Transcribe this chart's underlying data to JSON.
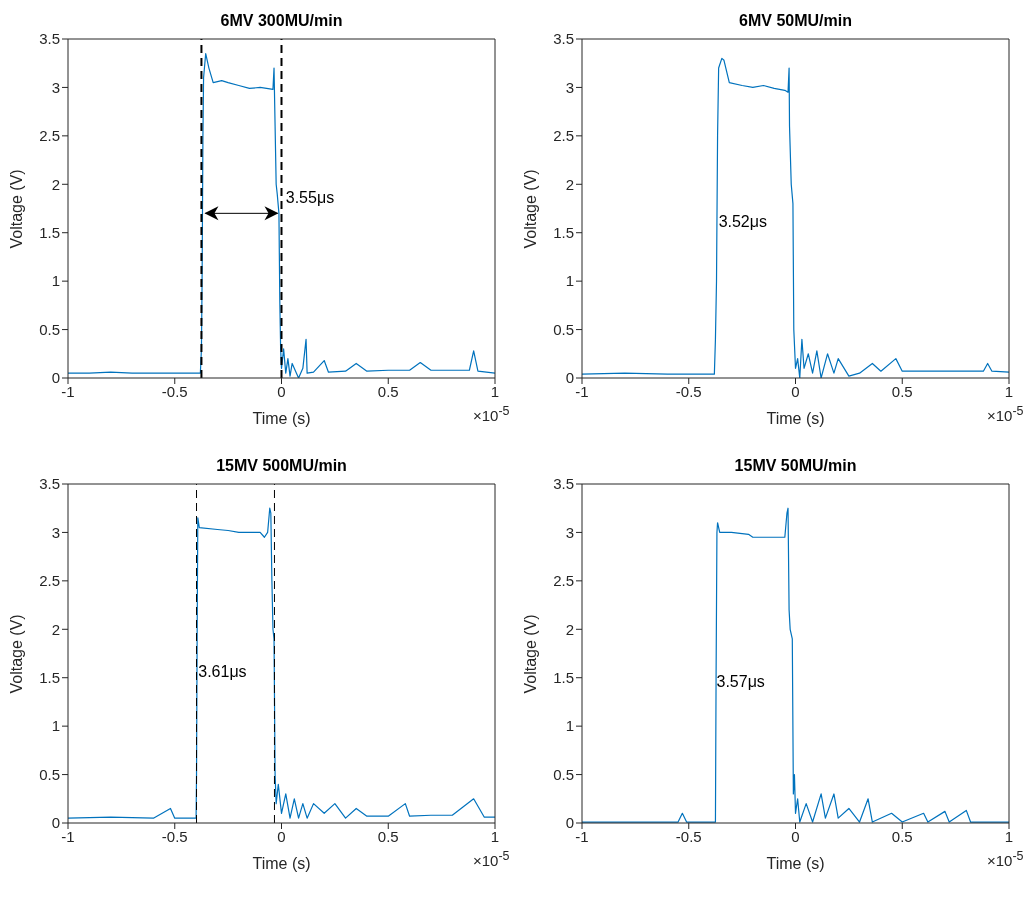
{
  "chart_data": [
    {
      "type": "line",
      "title": "6MV 300MU/min",
      "xlabel": "Time (s)",
      "ylabel": "Voltage (V)",
      "xlim": [
        -1,
        1
      ],
      "xticks": [
        -1,
        -0.5,
        0,
        0.5,
        1
      ],
      "ylim": [
        0,
        3.5
      ],
      "yticks": [
        0,
        0.5,
        1,
        1.5,
        2,
        2.5,
        3,
        3.5
      ],
      "marker": "none",
      "line_style": "solid",
      "series": [
        {
          "color": "#0072bd",
          "x": [
            -1,
            -0.9,
            -0.8,
            -0.7,
            -0.6,
            -0.5,
            -0.38,
            -0.375,
            -0.372,
            -0.368,
            -0.365,
            -0.355,
            -0.34,
            -0.32,
            -0.28,
            -0.25,
            -0.2,
            -0.15,
            -0.1,
            -0.04,
            -0.035,
            -0.03,
            -0.025,
            -0.02,
            -0.012,
            -0.008,
            -0.004,
            0,
            0.01,
            0.02,
            0.03,
            0.04,
            0.05,
            0.07,
            0.08,
            0.1,
            0.115,
            0.12,
            0.15,
            0.2,
            0.22,
            0.3,
            0.35,
            0.4,
            0.5,
            0.6,
            0.65,
            0.7,
            0.8,
            0.88,
            0.9,
            0.92,
            1
          ],
          "values": [
            0.05,
            0.05,
            0.06,
            0.05,
            0.05,
            0.05,
            0.05,
            0.3,
            1,
            2.5,
            3.1,
            3.35,
            3.2,
            3.05,
            3.07,
            3.05,
            3.02,
            2.99,
            3,
            2.98,
            3.2,
            2.6,
            2,
            1.9,
            1.7,
            0.8,
            0.3,
            0.1,
            0.3,
            0.05,
            0.2,
            0.02,
            0.15,
            0.05,
            0,
            0.1,
            0.4,
            0.05,
            0.06,
            0.18,
            0.06,
            0.07,
            0.15,
            0.07,
            0.08,
            0.08,
            0.16,
            0.08,
            0.08,
            0.08,
            0.28,
            0.07,
            0.05
          ]
        }
      ],
      "ref_lines": [
        {
          "axis": "x",
          "value": -0.375,
          "color": "#000000",
          "line_style": "dashed"
        },
        {
          "axis": "x",
          "value": 0,
          "color": "#000000",
          "line_style": "dashed"
        }
      ],
      "annotations": [
        {
          "text": "3.55μs",
          "x": 0.02,
          "y": 1.85
        },
        "×10$^{-5}$"
      ]
    },
    {
      "type": "line",
      "title": "6MV 50MU/min",
      "xlabel": "Time (s)",
      "ylabel": "Voltage (V)",
      "xlim": [
        -1,
        1
      ],
      "xticks": [
        -1,
        -0.5,
        0,
        0.5,
        1
      ],
      "ylim": [
        0,
        3.5
      ],
      "yticks": [
        0,
        0.5,
        1,
        1.5,
        2,
        2.5,
        3,
        3.5
      ],
      "marker": "none",
      "line_style": "solid",
      "series": [
        {
          "color": "#0072bd",
          "x": [
            -1,
            -0.8,
            -0.6,
            -0.38,
            -0.375,
            -0.37,
            -0.365,
            -0.36,
            -0.345,
            -0.335,
            -0.31,
            -0.25,
            -0.2,
            -0.15,
            -0.1,
            -0.05,
            -0.035,
            -0.03,
            -0.028,
            -0.02,
            -0.012,
            -0.008,
            0,
            0.01,
            0.02,
            0.03,
            0.04,
            0.06,
            0.08,
            0.1,
            0.12,
            0.15,
            0.18,
            0.2,
            0.25,
            0.3,
            0.36,
            0.4,
            0.47,
            0.5,
            0.6,
            0.7,
            0.88,
            0.9,
            0.92,
            1
          ],
          "values": [
            0.04,
            0.05,
            0.04,
            0.04,
            0.4,
            1,
            2.5,
            3.2,
            3.3,
            3.28,
            3.05,
            3.02,
            3,
            3.02,
            2.99,
            2.97,
            2.95,
            3.2,
            2.6,
            2,
            1.8,
            0.5,
            0.1,
            0.2,
            0,
            0.4,
            0.1,
            0.25,
            0.05,
            0.28,
            0,
            0.25,
            0.05,
            0.2,
            0.02,
            0.05,
            0.15,
            0.07,
            0.2,
            0.07,
            0.07,
            0.07,
            0.07,
            0.15,
            0.07,
            0.06
          ]
        }
      ],
      "annotations": [
        {
          "text": "3.52μs",
          "x": -0.36,
          "y": 1.6
        },
        "×10$^{-5}$"
      ]
    },
    {
      "type": "line",
      "title": "15MV 500MU/min",
      "xlabel": "Time (s)",
      "ylabel": "Voltage (V)",
      "xlim": [
        -1,
        1
      ],
      "xticks": [
        -1,
        -0.5,
        0,
        0.5,
        1
      ],
      "ylim": [
        0,
        3.5
      ],
      "yticks": [
        0,
        0.5,
        1,
        1.5,
        2,
        2.5,
        3,
        3.5
      ],
      "marker": "none",
      "line_style": "solid",
      "series": [
        {
          "color": "#0072bd",
          "x": [
            -1,
            -0.8,
            -0.6,
            -0.52,
            -0.5,
            -0.4,
            -0.398,
            -0.395,
            -0.392,
            -0.385,
            -0.3,
            -0.25,
            -0.2,
            -0.1,
            -0.08,
            -0.065,
            -0.055,
            -0.05,
            -0.045,
            -0.04,
            -0.035,
            -0.03,
            -0.025,
            -0.015,
            0,
            0.02,
            0.04,
            0.06,
            0.08,
            0.1,
            0.12,
            0.15,
            0.2,
            0.25,
            0.3,
            0.35,
            0.4,
            0.5,
            0.58,
            0.6,
            0.7,
            0.8,
            0.9,
            0.95,
            1
          ],
          "values": [
            0.05,
            0.06,
            0.05,
            0.15,
            0.05,
            0.05,
            0.5,
            2,
            3.15,
            3.05,
            3.03,
            3.02,
            3,
            3,
            2.95,
            3,
            3.25,
            3.2,
            2.5,
            2,
            1.9,
            0.5,
            0.2,
            0.4,
            0.1,
            0.3,
            0.05,
            0.25,
            0.05,
            0.2,
            0.05,
            0.2,
            0.1,
            0.2,
            0.05,
            0.15,
            0.07,
            0.07,
            0.2,
            0.07,
            0.08,
            0.08,
            0.25,
            0.06,
            0.06
          ]
        }
      ],
      "ref_lines": [
        {
          "axis": "x",
          "value": -0.398,
          "color": "#000000",
          "line_style": "dashed"
        },
        {
          "axis": "x",
          "value": -0.033,
          "color": "#000000",
          "line_style": "dashed"
        }
      ],
      "annotations": [
        {
          "text": "3.61μs",
          "x": -0.39,
          "y": 1.55
        },
        "×10$^{-5}$"
      ]
    },
    {
      "type": "line",
      "title": "15MV 50MU/min",
      "xlabel": "Time (s)",
      "ylabel": "Voltage (V)",
      "xlim": [
        -1,
        1
      ],
      "xticks": [
        -1,
        -0.5,
        0,
        0.5,
        1
      ],
      "ylim": [
        0,
        3.5
      ],
      "yticks": [
        0,
        0.5,
        1,
        1.5,
        2,
        2.5,
        3,
        3.5
      ],
      "marker": "none",
      "line_style": "solid",
      "series": [
        {
          "color": "#0072bd",
          "x": [
            -1,
            -0.8,
            -0.55,
            -0.53,
            -0.51,
            -0.375,
            -0.372,
            -0.368,
            -0.365,
            -0.355,
            -0.3,
            -0.22,
            -0.2,
            -0.1,
            -0.05,
            -0.04,
            -0.035,
            -0.03,
            -0.025,
            -0.015,
            -0.01,
            -0.005,
            0,
            0.01,
            0.02,
            0.05,
            0.08,
            0.12,
            0.14,
            0.18,
            0.2,
            0.25,
            0.3,
            0.34,
            0.36,
            0.45,
            0.5,
            0.6,
            0.62,
            0.7,
            0.72,
            0.8,
            0.82,
            1
          ],
          "values": [
            0.01,
            0.01,
            0.01,
            0.1,
            0.01,
            0.01,
            1.5,
            3,
            3.1,
            3,
            3,
            2.98,
            2.95,
            2.95,
            2.95,
            3.2,
            3.25,
            2.2,
            2,
            1.9,
            0.3,
            0.5,
            0.1,
            0.25,
            0.01,
            0.2,
            0.01,
            0.3,
            0.05,
            0.3,
            0.05,
            0.15,
            0.01,
            0.25,
            0.01,
            0.1,
            0.01,
            0.1,
            0.01,
            0.12,
            0.01,
            0.13,
            0.01,
            0.01
          ]
        }
      ],
      "annotations": [
        {
          "text": "3.57μs",
          "x": -0.37,
          "y": 1.45
        },
        "×10$^{-5}$"
      ]
    }
  ]
}
